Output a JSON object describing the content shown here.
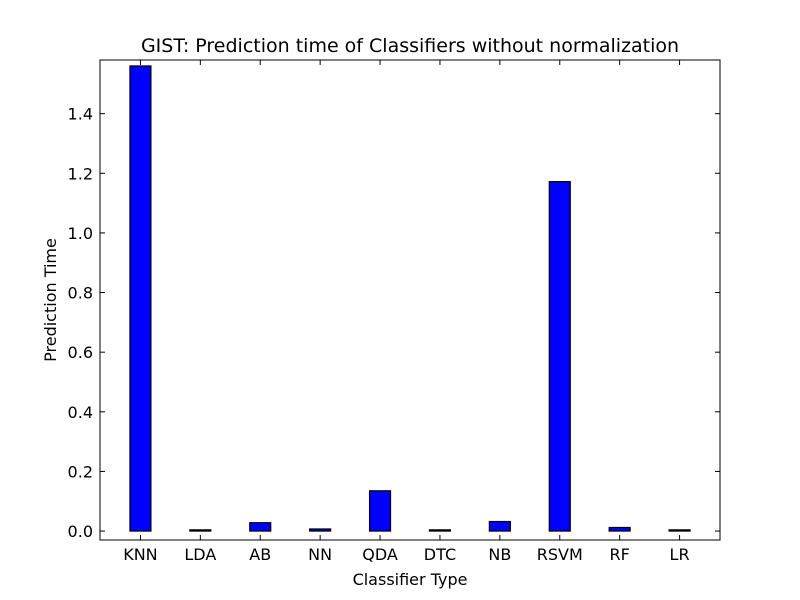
{
  "chart_data": {
    "type": "bar",
    "title": "GIST: Prediction time of Classifiers without normalization",
    "xlabel": "Classifier Type",
    "ylabel": "Prediction Time",
    "categories": [
      "KNN",
      "LDA",
      "AB",
      "NN",
      "QDA",
      "DTC",
      "NB",
      "RSVM",
      "RF",
      "LR"
    ],
    "values": [
      1.56,
      0.004,
      0.028,
      0.007,
      0.135,
      0.004,
      0.032,
      1.172,
      0.012,
      0.004
    ],
    "ylim": [
      -0.03,
      1.58
    ],
    "yticks": [
      0.0,
      0.2,
      0.4,
      0.6,
      0.8,
      1.0,
      1.2,
      1.4
    ],
    "ytick_labels": [
      "0.0",
      "0.2",
      "0.4",
      "0.6",
      "0.8",
      "1.0",
      "1.2",
      "1.4"
    ],
    "grid": false,
    "legend": "none",
    "bar_color": "#0000ff",
    "edge_color": "#000000"
  }
}
